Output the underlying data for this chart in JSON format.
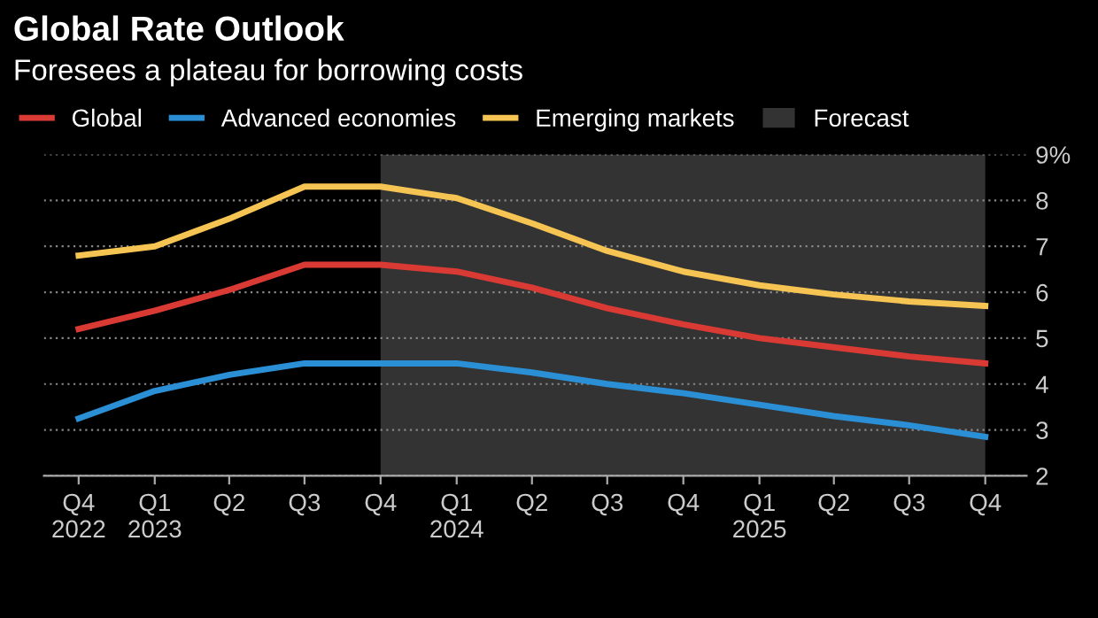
{
  "chart_data": {
    "type": "line",
    "title": "Global Rate Outlook",
    "subtitle": "Foresees a plateau for borrowing costs",
    "x": [
      "2022-10",
      "2023-01",
      "2023-04",
      "2023-07",
      "2023-10",
      "2024-01",
      "2024-04",
      "2024-07",
      "2024-10",
      "2025-01",
      "2025-04",
      "2025-07",
      "2025-10"
    ],
    "xlim": [
      "2022-08-20",
      "2025-11-20"
    ],
    "xticks": [
      {
        "value": "2022-10",
        "label": "Q4\n2022"
      },
      {
        "value": "2023-01",
        "label": "Q1\n2023"
      },
      {
        "value": "2023-04",
        "label": "Q2"
      },
      {
        "value": "2023-07",
        "label": "Q3"
      },
      {
        "value": "2023-10",
        "label": "Q4"
      },
      {
        "value": "2024-01",
        "label": "Q1\n2024"
      },
      {
        "value": "2024-04",
        "label": "Q2"
      },
      {
        "value": "2024-07",
        "label": "Q3"
      },
      {
        "value": "2024-10",
        "label": "Q4"
      },
      {
        "value": "2025-01",
        "label": "Q1\n2025"
      },
      {
        "value": "2025-04",
        "label": "Q2"
      },
      {
        "value": "2025-07",
        "label": "Q3"
      },
      {
        "value": "2025-10",
        "label": "Q4"
      }
    ],
    "series": [
      {
        "name": "Global",
        "color": "#d93a34",
        "values": [
          5.2,
          5.6,
          6.05,
          6.6,
          6.6,
          6.45,
          6.1,
          5.65,
          5.3,
          5.0,
          4.8,
          4.6,
          4.45
        ]
      },
      {
        "name": "Advanced economies",
        "color": "#2b8fd6",
        "values": [
          3.25,
          3.85,
          4.2,
          4.45,
          4.45,
          4.45,
          4.25,
          4.0,
          3.8,
          3.55,
          3.3,
          3.1,
          2.85
        ]
      },
      {
        "name": "Emerging markets",
        "color": "#f6c453",
        "values": [
          6.8,
          7.0,
          7.6,
          8.3,
          8.3,
          8.05,
          7.5,
          6.9,
          6.45,
          6.15,
          5.95,
          5.8,
          5.7
        ]
      }
    ],
    "bands": [
      {
        "axis": "x",
        "from": "2023-10",
        "to": "2025-10",
        "label": "Forecast",
        "color": "#333333"
      }
    ],
    "ylim": [
      2,
      9
    ],
    "yticks": [
      2,
      3,
      4,
      5,
      6,
      7,
      8,
      {
        "value": 9,
        "label": "9%"
      }
    ],
    "grid": "y",
    "legend": "top left",
    "line_style": "solid",
    "marker": "none"
  }
}
